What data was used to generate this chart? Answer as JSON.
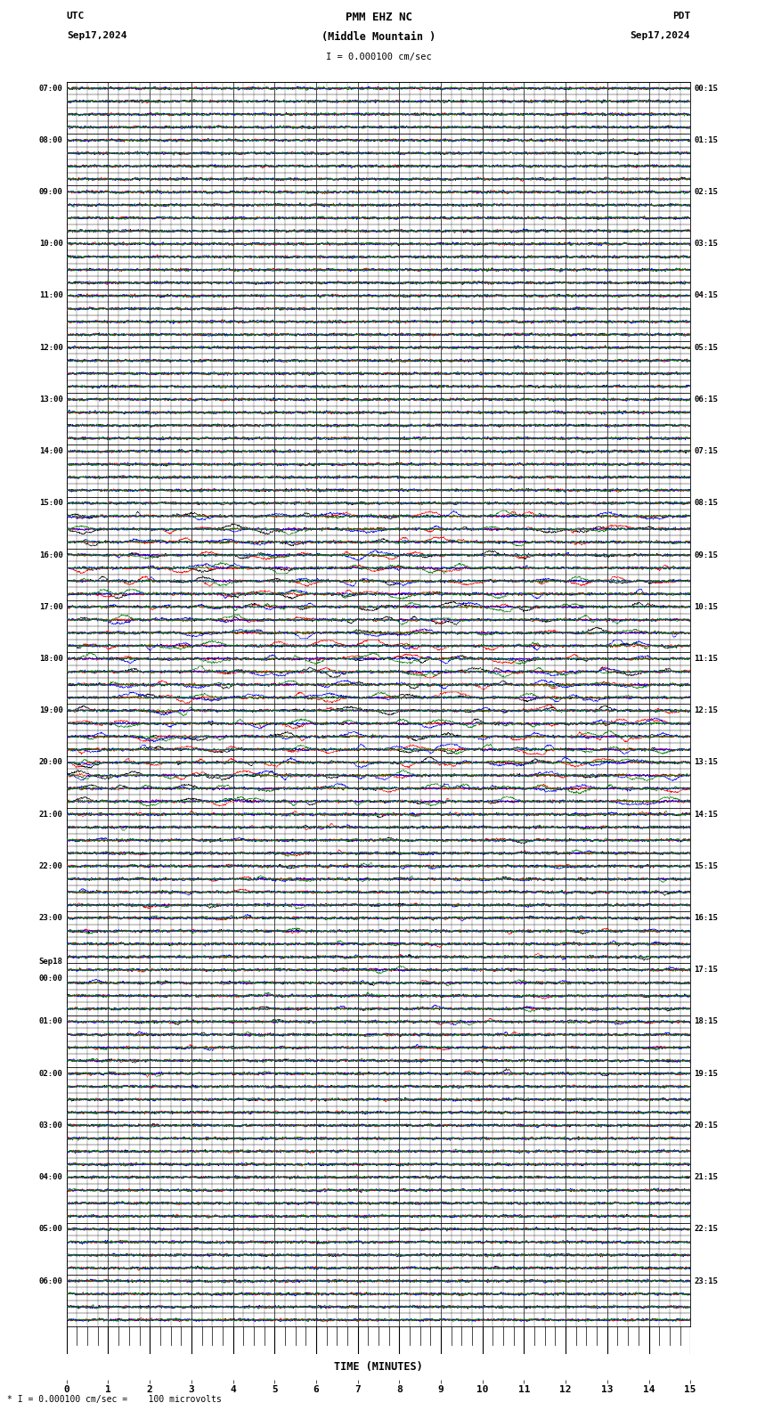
{
  "title_line1": "PMM EHZ NC",
  "title_line2": "(Middle Mountain )",
  "title_scale": "I = 0.000100 cm/sec",
  "label_left_top": "UTC",
  "label_left_date": "Sep17,2024",
  "label_right_top": "PDT",
  "label_right_date": "Sep17,2024",
  "bottom_label": "TIME (MINUTES)",
  "bottom_note": "* I = 0.000100 cm/sec =    100 microvolts",
  "xlim": [
    0,
    15
  ],
  "n_rows": 96,
  "utc_labels_hourly": [
    "07:00",
    "08:00",
    "09:00",
    "10:00",
    "11:00",
    "12:00",
    "13:00",
    "14:00",
    "15:00",
    "16:00",
    "17:00",
    "18:00",
    "19:00",
    "20:00",
    "21:00",
    "22:00",
    "23:00",
    "Sep18\n00:00",
    "01:00",
    "02:00",
    "03:00",
    "04:00",
    "05:00",
    "06:00"
  ],
  "pdt_labels_hourly": [
    "00:15",
    "01:15",
    "02:15",
    "03:15",
    "04:15",
    "05:15",
    "06:15",
    "07:15",
    "08:15",
    "09:15",
    "10:15",
    "11:15",
    "12:15",
    "13:15",
    "14:15",
    "15:15",
    "16:15",
    "17:15",
    "18:15",
    "19:15",
    "20:15",
    "21:15",
    "22:15",
    "23:15"
  ],
  "bg_color": "#ffffff",
  "grid_color": "#000000",
  "trace_colors": [
    "#000000",
    "#ff0000",
    "#0000ff",
    "#008000"
  ],
  "noise_amplitude_base": 0.025
}
